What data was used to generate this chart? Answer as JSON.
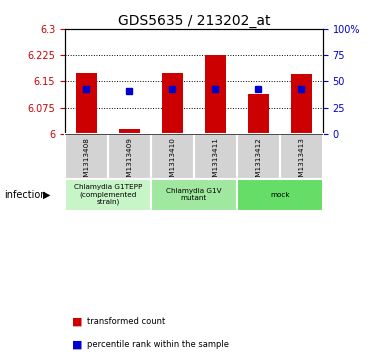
{
  "title": "GDS5635 / 213202_at",
  "samples": [
    "GSM1313408",
    "GSM1313409",
    "GSM1313410",
    "GSM1313411",
    "GSM1313412",
    "GSM1313413"
  ],
  "bar_tops": [
    6.175,
    6.013,
    6.175,
    6.225,
    6.115,
    6.17
  ],
  "bar_bottoms": [
    6.0,
    6.0,
    6.0,
    6.0,
    6.0,
    6.0
  ],
  "blue_dots_y": [
    6.127,
    6.122,
    6.127,
    6.127,
    6.127,
    6.127
  ],
  "ylim": [
    6.0,
    6.3
  ],
  "yticks": [
    6.0,
    6.075,
    6.15,
    6.225,
    6.3
  ],
  "ytick_labels": [
    "6",
    "6.075",
    "6.15",
    "6.225",
    "6.3"
  ],
  "right_ytick_positions": [
    0.0,
    0.25,
    0.5,
    0.75,
    1.0
  ],
  "right_ytick_labels": [
    "0",
    "25",
    "50",
    "75",
    "100%"
  ],
  "bar_color": "#cc0000",
  "dot_color": "#0000cc",
  "bar_width": 0.5,
  "groups": [
    {
      "label": "Chlamydia G1TEPP\n(complemented\nstrain)",
      "color": "#c8f5c8",
      "cols": [
        0,
        1
      ]
    },
    {
      "label": "Chlamydia G1V\nmutant",
      "color": "#a0e8a0",
      "cols": [
        2,
        3
      ]
    },
    {
      "label": "mock",
      "color": "#66dd66",
      "cols": [
        4,
        5
      ]
    }
  ],
  "legend_items": [
    {
      "color": "#cc0000",
      "label": "transformed count"
    },
    {
      "color": "#0000cc",
      "label": "percentile rank within the sample"
    }
  ],
  "infection_label": "infection",
  "ylabel_color": "#cc0000",
  "right_ylabel_color": "#0000cc",
  "tick_label_fontsize": 7,
  "title_fontsize": 10,
  "sample_bg_color": "#d3d3d3",
  "sample_border_color": "#ffffff"
}
